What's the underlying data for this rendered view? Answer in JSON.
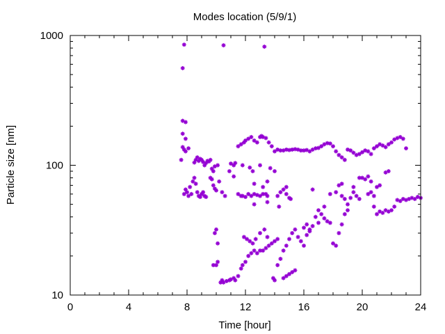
{
  "chart_data": {
    "type": "scatter",
    "title": "Modes location (5/9/1)",
    "xlabel": "Time [hour]",
    "ylabel": "Particle size [nm]",
    "xlim": [
      0,
      24
    ],
    "ylim": [
      10,
      1000
    ],
    "yscale": "log",
    "xticks": [
      0,
      4,
      8,
      12,
      16,
      20,
      24
    ],
    "yticks": [
      10,
      100,
      1000
    ],
    "xtick_labels": [
      "0",
      "4",
      "8",
      "12",
      "16",
      "20",
      "24"
    ],
    "ytick_labels": [
      "10",
      "100",
      "1000"
    ],
    "marker_color": "#9400d3",
    "grid": false,
    "series": [
      {
        "points": [
          [
            7.8,
            850
          ],
          [
            7.7,
            560
          ],
          [
            10.5,
            840
          ],
          [
            13.3,
            820
          ],
          [
            7.7,
            220
          ],
          [
            7.9,
            215
          ],
          [
            7.7,
            175
          ],
          [
            7.9,
            160
          ],
          [
            7.7,
            138
          ],
          [
            7.8,
            132
          ],
          [
            7.9,
            128
          ],
          [
            8.1,
            135
          ],
          [
            7.6,
            110
          ],
          [
            7.8,
            60
          ],
          [
            7.9,
            65
          ],
          [
            8.0,
            62
          ],
          [
            8.1,
            58
          ],
          [
            8.2,
            68
          ],
          [
            8.3,
            60
          ],
          [
            8.4,
            75
          ],
          [
            8.5,
            80
          ],
          [
            8.6,
            72
          ],
          [
            8.7,
            62
          ],
          [
            8.8,
            58
          ],
          [
            8.9,
            57
          ],
          [
            9.0,
            60
          ],
          [
            9.1,
            62
          ],
          [
            9.2,
            58
          ],
          [
            9.3,
            57
          ],
          [
            8.5,
            105
          ],
          [
            8.6,
            110
          ],
          [
            8.7,
            115
          ],
          [
            8.8,
            108
          ],
          [
            8.9,
            112
          ],
          [
            9.0,
            110
          ],
          [
            9.1,
            106
          ],
          [
            9.2,
            100
          ],
          [
            9.3,
            104
          ],
          [
            9.4,
            108
          ],
          [
            9.5,
            107
          ],
          [
            9.6,
            110
          ],
          [
            9.7,
            94
          ],
          [
            9.8,
            90
          ],
          [
            9.9,
            98
          ],
          [
            10.1,
            100
          ],
          [
            9.6,
            80
          ],
          [
            9.7,
            78
          ],
          [
            9.8,
            70
          ],
          [
            9.9,
            66
          ],
          [
            10.0,
            64
          ],
          [
            10.2,
            75
          ],
          [
            10.4,
            62
          ],
          [
            10.6,
            58
          ],
          [
            11.0,
            103
          ],
          [
            11.2,
            100
          ],
          [
            11.3,
            104
          ],
          [
            11.5,
            60
          ],
          [
            11.7,
            58
          ],
          [
            11.8,
            58
          ],
          [
            12.0,
            57
          ],
          [
            12.2,
            60
          ],
          [
            12.4,
            58
          ],
          [
            12.6,
            60
          ],
          [
            12.8,
            59
          ],
          [
            13.0,
            58
          ],
          [
            13.2,
            60
          ],
          [
            13.4,
            60
          ],
          [
            13.5,
            58
          ],
          [
            10.9,
            90
          ],
          [
            11.2,
            82
          ],
          [
            11.5,
            140
          ],
          [
            11.7,
            145
          ],
          [
            11.9,
            150
          ],
          [
            12.0,
            155
          ],
          [
            12.2,
            160
          ],
          [
            12.4,
            165
          ],
          [
            12.6,
            155
          ],
          [
            12.8,
            150
          ],
          [
            13.0,
            165
          ],
          [
            13.1,
            168
          ],
          [
            13.2,
            165
          ],
          [
            13.4,
            162
          ],
          [
            13.6,
            150
          ],
          [
            13.8,
            140
          ],
          [
            14.0,
            128
          ],
          [
            14.2,
            132
          ],
          [
            14.4,
            130
          ],
          [
            14.6,
            130
          ],
          [
            14.8,
            132
          ],
          [
            15.0,
            131
          ],
          [
            15.2,
            132
          ],
          [
            15.4,
            133
          ],
          [
            15.6,
            132
          ],
          [
            15.8,
            130
          ],
          [
            16.0,
            130
          ],
          [
            16.2,
            131
          ],
          [
            16.4,
            128
          ],
          [
            16.6,
            132
          ],
          [
            16.8,
            135
          ],
          [
            17.0,
            136
          ],
          [
            17.2,
            140
          ],
          [
            17.4,
            145
          ],
          [
            17.6,
            148
          ],
          [
            17.8,
            147
          ],
          [
            18.0,
            140
          ],
          [
            18.2,
            128
          ],
          [
            18.4,
            120
          ],
          [
            18.6,
            115
          ],
          [
            18.8,
            110
          ],
          [
            19.0,
            132
          ],
          [
            19.2,
            130
          ],
          [
            19.4,
            125
          ],
          [
            19.6,
            120
          ],
          [
            19.8,
            122
          ],
          [
            20.0,
            126
          ],
          [
            20.2,
            130
          ],
          [
            20.4,
            128
          ],
          [
            20.6,
            122
          ],
          [
            20.8,
            135
          ],
          [
            21.0,
            140
          ],
          [
            21.2,
            145
          ],
          [
            21.4,
            142
          ],
          [
            21.6,
            138
          ],
          [
            21.8,
            145
          ],
          [
            22.0,
            150
          ],
          [
            22.2,
            158
          ],
          [
            22.4,
            162
          ],
          [
            22.6,
            165
          ],
          [
            22.8,
            160
          ],
          [
            23.0,
            135
          ],
          [
            11.8,
            100
          ],
          [
            12.3,
            96
          ],
          [
            12.5,
            90
          ],
          [
            13.0,
            100
          ],
          [
            13.7,
            95
          ],
          [
            14.0,
            90
          ],
          [
            14.2,
            58
          ],
          [
            14.4,
            62
          ],
          [
            14.6,
            65
          ],
          [
            14.8,
            60
          ],
          [
            15.0,
            56
          ],
          [
            15.1,
            55
          ],
          [
            12.6,
            72
          ],
          [
            13.2,
            68
          ],
          [
            13.5,
            75
          ],
          [
            12.6,
            50
          ],
          [
            13.5,
            52
          ],
          [
            14.3,
            48
          ],
          [
            14.8,
            68
          ],
          [
            9.8,
            17
          ],
          [
            10.0,
            17
          ],
          [
            10.1,
            18
          ],
          [
            9.9,
            30
          ],
          [
            10.0,
            32
          ],
          [
            10.1,
            25
          ],
          [
            10.3,
            12.5
          ],
          [
            10.4,
            13
          ],
          [
            10.5,
            12.5
          ],
          [
            10.7,
            12.8
          ],
          [
            10.9,
            13
          ],
          [
            11.0,
            13.2
          ],
          [
            11.2,
            13.5
          ],
          [
            11.3,
            13
          ],
          [
            11.5,
            14
          ],
          [
            11.7,
            16
          ],
          [
            11.8,
            17
          ],
          [
            12.0,
            18
          ],
          [
            12.2,
            20
          ],
          [
            12.4,
            21
          ],
          [
            12.6,
            22
          ],
          [
            12.8,
            21
          ],
          [
            13.0,
            22
          ],
          [
            13.2,
            22
          ],
          [
            13.4,
            23
          ],
          [
            13.6,
            24
          ],
          [
            13.8,
            25
          ],
          [
            14.0,
            26
          ],
          [
            14.2,
            27
          ],
          [
            11.9,
            28
          ],
          [
            12.1,
            27
          ],
          [
            12.3,
            26
          ],
          [
            12.5,
            25
          ],
          [
            12.7,
            27
          ],
          [
            13.0,
            30
          ],
          [
            13.3,
            32
          ],
          [
            13.5,
            28
          ],
          [
            13.9,
            13.5
          ],
          [
            14.0,
            13
          ],
          [
            14.2,
            17
          ],
          [
            14.4,
            19
          ],
          [
            14.6,
            22
          ],
          [
            14.8,
            24
          ],
          [
            15.0,
            27
          ],
          [
            15.2,
            30
          ],
          [
            15.4,
            32
          ],
          [
            15.6,
            28
          ],
          [
            15.8,
            26
          ],
          [
            16.0,
            24
          ],
          [
            16.2,
            29
          ],
          [
            16.4,
            31
          ],
          [
            16.6,
            34
          ],
          [
            16.8,
            40
          ],
          [
            17.0,
            45
          ],
          [
            17.2,
            42
          ],
          [
            17.4,
            39
          ],
          [
            17.6,
            37
          ],
          [
            17.8,
            36
          ],
          [
            18.0,
            25
          ],
          [
            18.2,
            24
          ],
          [
            18.4,
            30
          ],
          [
            18.6,
            35
          ],
          [
            18.8,
            42
          ],
          [
            19.0,
            45
          ],
          [
            14.6,
            13.5
          ],
          [
            14.8,
            14
          ],
          [
            15.0,
            14.5
          ],
          [
            15.2,
            15
          ],
          [
            15.4,
            15.5
          ],
          [
            16.0,
            33
          ],
          [
            16.2,
            35
          ],
          [
            16.4,
            32
          ],
          [
            16.6,
            65
          ],
          [
            17.0,
            36
          ],
          [
            17.4,
            48
          ],
          [
            17.8,
            60
          ],
          [
            18.4,
            70
          ],
          [
            18.6,
            72
          ],
          [
            18.8,
            55
          ],
          [
            19.0,
            50
          ],
          [
            19.2,
            56
          ],
          [
            19.4,
            62
          ],
          [
            19.6,
            58
          ],
          [
            19.8,
            55
          ],
          [
            20.0,
            80
          ],
          [
            20.2,
            78
          ],
          [
            20.4,
            82
          ],
          [
            20.6,
            75
          ],
          [
            20.8,
            48
          ],
          [
            21.0,
            42
          ],
          [
            21.2,
            44
          ],
          [
            21.4,
            43
          ],
          [
            21.6,
            45
          ],
          [
            21.8,
            44
          ],
          [
            22.0,
            45
          ],
          [
            22.2,
            48
          ],
          [
            22.4,
            54
          ],
          [
            22.6,
            53
          ],
          [
            22.8,
            55
          ],
          [
            23.0,
            54
          ],
          [
            23.2,
            55
          ],
          [
            23.4,
            56
          ],
          [
            23.6,
            55
          ],
          [
            23.8,
            57
          ],
          [
            24.0,
            56
          ],
          [
            20.4,
            60
          ],
          [
            20.6,
            62
          ],
          [
            20.8,
            58
          ],
          [
            21.0,
            68
          ],
          [
            21.2,
            70
          ],
          [
            21.6,
            88
          ],
          [
            21.8,
            90
          ],
          [
            19.4,
            68
          ],
          [
            19.8,
            80
          ],
          [
            18.6,
            58
          ],
          [
            18.2,
            62
          ]
        ]
      }
    ]
  }
}
